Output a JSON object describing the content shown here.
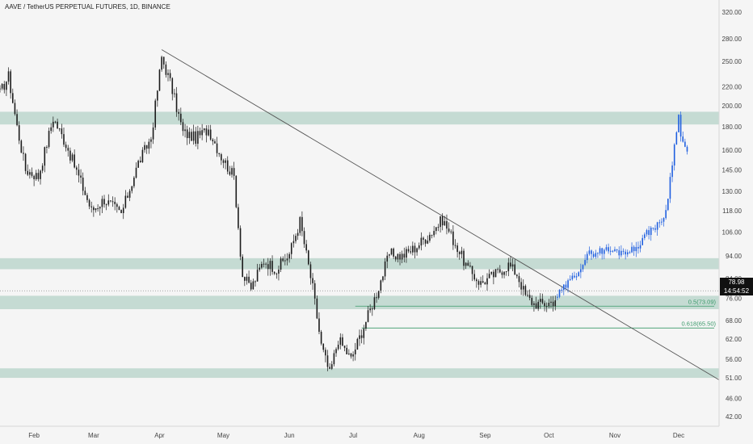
{
  "header": {
    "title": "AAVE / TetherUS PERPETUAL FUTURES, 1D, BINANCE"
  },
  "price_scale": {
    "labels": [
      "320.00",
      "280.00",
      "250.00",
      "220.00",
      "200.00",
      "180.00",
      "160.00",
      "145.00",
      "130.00",
      "118.00",
      "106.00",
      "94.00",
      "84.00",
      "76.00",
      "68.00",
      "62.00",
      "56.00",
      "51.00",
      "46.00",
      "42.00"
    ],
    "last_price": "78.98",
    "countdown": "14:54:52"
  },
  "time_axis": {
    "labels": [
      "Feb",
      "Mar",
      "Apr",
      "May",
      "Jun",
      "Jul",
      "Aug",
      "Sep",
      "Oct",
      "Nov",
      "Dec"
    ]
  },
  "colors": {
    "background": "#f5f5f5",
    "zone": "#bcd6cd",
    "candle": "#1c1c1c",
    "projection": "#1f5fe0",
    "fib": "#3a9a6a",
    "trendline": "#555555"
  },
  "chart_data": {
    "type": "candlestick",
    "title": "AAVE / TetherUS PERPETUAL FUTURES, 1D, BINANCE",
    "y_scale": "log",
    "ylim": [
      40,
      340
    ],
    "x_range": [
      "2022-01-16",
      "2022-12-20"
    ],
    "support_resistance_zones": [
      {
        "low": 182,
        "high": 194
      },
      {
        "low": 88,
        "high": 93
      },
      {
        "low": 72,
        "high": 77
      },
      {
        "low": 51,
        "high": 53.5
      }
    ],
    "trendline": {
      "from": {
        "date": "2022-04-02",
        "price": 265
      },
      "to": {
        "date": "2022-12-20",
        "price": 50.5
      }
    },
    "fib_levels": [
      {
        "label": "0.5(73.09)",
        "price": 73.09,
        "start": "2022-07-02"
      },
      {
        "label": "0.618(65.50)",
        "price": 65.5,
        "start": "2022-07-05"
      }
    ],
    "historical_path": [
      [
        "2022-01-16",
        213
      ],
      [
        "2022-01-20",
        232
      ],
      [
        "2022-01-24",
        180
      ],
      [
        "2022-01-28",
        145
      ],
      [
        "2022-02-03",
        140
      ],
      [
        "2022-02-10",
        188
      ],
      [
        "2022-02-16",
        165
      ],
      [
        "2022-02-22",
        140
      ],
      [
        "2022-02-28",
        118
      ],
      [
        "2022-03-06",
        125
      ],
      [
        "2022-03-14",
        116
      ],
      [
        "2022-03-22",
        150
      ],
      [
        "2022-03-28",
        170
      ],
      [
        "2022-04-02",
        255
      ],
      [
        "2022-04-06",
        225
      ],
      [
        "2022-04-12",
        175
      ],
      [
        "2022-04-18",
        170
      ],
      [
        "2022-04-24",
        178
      ],
      [
        "2022-04-30",
        155
      ],
      [
        "2022-05-06",
        140
      ],
      [
        "2022-05-10",
        85
      ],
      [
        "2022-05-14",
        80
      ],
      [
        "2022-05-20",
        92
      ],
      [
        "2022-05-26",
        88
      ],
      [
        "2022-06-01",
        95
      ],
      [
        "2022-06-06",
        112
      ],
      [
        "2022-06-12",
        80
      ],
      [
        "2022-06-16",
        60
      ],
      [
        "2022-06-20",
        52
      ],
      [
        "2022-06-24",
        62
      ],
      [
        "2022-06-30",
        56
      ],
      [
        "2022-07-06",
        66
      ],
      [
        "2022-07-12",
        78
      ],
      [
        "2022-07-18",
        95
      ],
      [
        "2022-07-24",
        94
      ],
      [
        "2022-07-30",
        98
      ],
      [
        "2022-08-06",
        105
      ],
      [
        "2022-08-12",
        113
      ],
      [
        "2022-08-18",
        100
      ],
      [
        "2022-08-24",
        88
      ],
      [
        "2022-08-30",
        82
      ],
      [
        "2022-09-06",
        86
      ],
      [
        "2022-09-12",
        90
      ],
      [
        "2022-09-16",
        86
      ],
      [
        "2022-09-20",
        77
      ],
      [
        "2022-09-24",
        74
      ],
      [
        "2022-09-30",
        74
      ],
      [
        "2022-10-03",
        75
      ],
      [
        "2022-10-05",
        77
      ]
    ],
    "projection_path": [
      [
        "2022-10-05",
        77
      ],
      [
        "2022-10-12",
        84
      ],
      [
        "2022-10-20",
        95
      ],
      [
        "2022-10-27",
        97
      ],
      [
        "2022-11-03",
        96
      ],
      [
        "2022-11-10",
        97
      ],
      [
        "2022-11-18",
        108
      ],
      [
        "2022-11-22",
        110
      ],
      [
        "2022-11-25",
        118
      ],
      [
        "2022-11-28",
        150
      ],
      [
        "2022-11-30",
        178
      ],
      [
        "2022-12-01",
        195
      ],
      [
        "2022-12-02",
        170
      ],
      [
        "2022-12-04",
        163
      ],
      [
        "2022-12-06",
        155
      ]
    ]
  }
}
